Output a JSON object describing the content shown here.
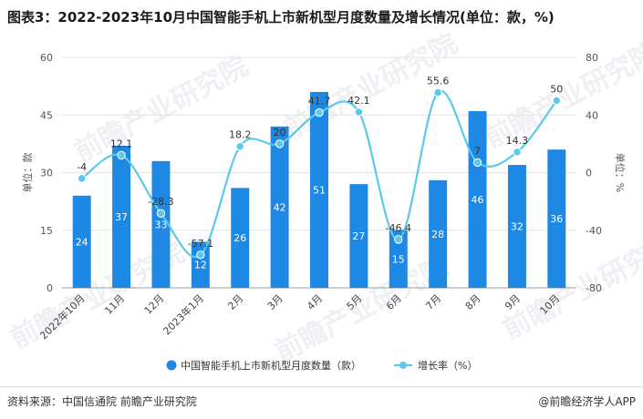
{
  "title": "图表3：2022-2023年10月中国智能手机上市新机型月度数量及增长情况(单位：款，%)",
  "footer": {
    "source": "资料来源：中国信通院 前瞻产业研究院",
    "credit": "@前瞻经济学人APP"
  },
  "watermark": "前瞻产业研究院",
  "chart_data": {
    "type": "bar+line",
    "categories": [
      "2022年10月",
      "11月",
      "12月",
      "2023年1月",
      "2月",
      "3月",
      "4月",
      "5月",
      "6月",
      "7月",
      "8月",
      "9月",
      "10月"
    ],
    "series": [
      {
        "name": "中国智能手机上市新机型月度数量（款）",
        "type": "bar",
        "axis": "left",
        "color": "#1e88e5",
        "values": [
          24,
          37,
          33,
          12,
          26,
          42,
          51,
          27,
          15,
          28,
          46,
          32,
          36
        ]
      },
      {
        "name": "增长率（%）",
        "type": "line",
        "axis": "right",
        "color": "#5bc8ec",
        "values": [
          -4,
          12.1,
          -28.3,
          -57.1,
          18.2,
          20,
          41.7,
          42.1,
          -46.4,
          55.6,
          7,
          14.3,
          50
        ]
      }
    ],
    "y_left": {
      "label": "单位：款",
      "min": 0,
      "max": 60,
      "ticks": [
        0,
        15,
        30,
        45,
        60
      ]
    },
    "y_right": {
      "label": "单位：%",
      "min": -80,
      "max": 80,
      "ticks": [
        -80,
        -40,
        0,
        40,
        80
      ]
    },
    "grid": true,
    "legend": "bottom-center"
  }
}
